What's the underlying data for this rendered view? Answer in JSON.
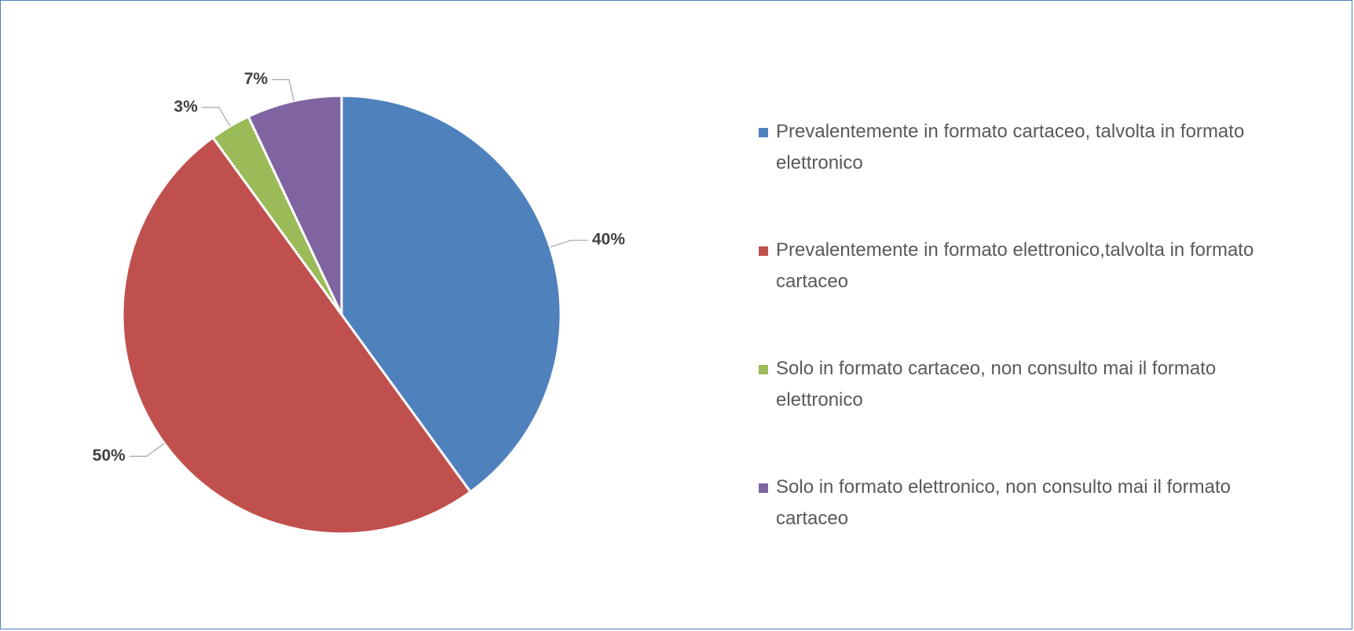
{
  "chart_data": {
    "type": "pie",
    "categories": [
      "Prevalentemente in formato cartaceo, talvolta in formato elettronico",
      "Prevalentemente in formato elettronico,talvolta in formato cartaceo",
      "Solo in formato cartaceo, non consulto mai il formato elettronico",
      "Solo in formato elettronico, non consulto mai il formato cartaceo"
    ],
    "values": [
      40,
      50,
      3,
      7
    ],
    "value_labels": [
      "40%",
      "50%",
      "3%",
      "7%"
    ],
    "colors": [
      "#4f81bd",
      "#c0504d",
      "#9bbb59",
      "#8064a2"
    ],
    "legend": "right"
  }
}
